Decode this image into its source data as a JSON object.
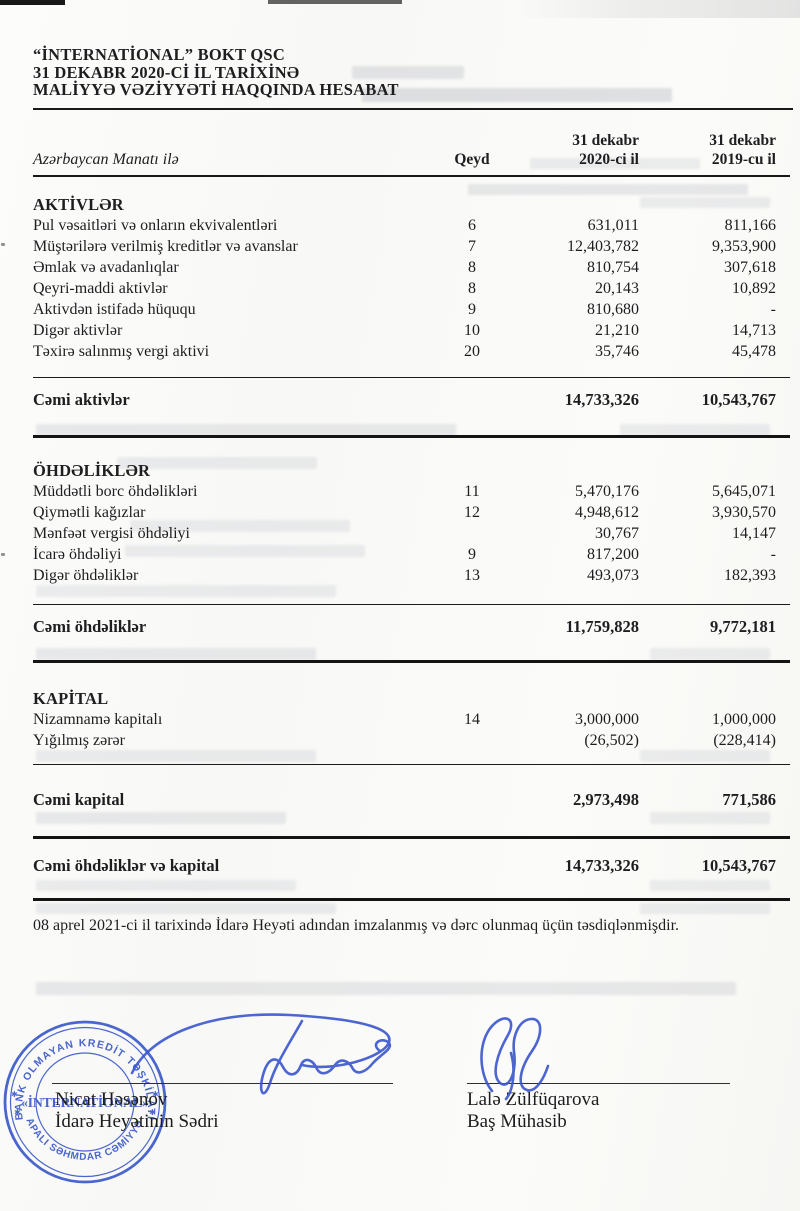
{
  "header": {
    "title_lines": [
      "“İNTERNATİONAL” BOKT QSC",
      "31 DEKABR 2020-Cİ İL TARİXİNƏ",
      "MALİYYƏ VƏZİYYƏTİ HAQQINDA HESABAT"
    ]
  },
  "table": {
    "currency_label": "Azərbaycan Manatı ilə",
    "note_header": "Qeyd",
    "col_2020": {
      "line1": "31 dekabr",
      "line2": "2020-ci il"
    },
    "col_2019": {
      "line1": "31 dekabr",
      "line2": "2019-cu il"
    },
    "sections": [
      {
        "heading": "AKTİVLƏR",
        "rows": [
          {
            "label": "Pul vəsaitləri və onların ekvivalentləri",
            "note": "6",
            "v2020": "631,011",
            "v2019": "811,166"
          },
          {
            "label": "Müştərilərə verilmiş kreditlər və avanslar",
            "note": "7",
            "v2020": "12,403,782",
            "v2019": "9,353,900"
          },
          {
            "label": "Əmlak və avadanlıqlar",
            "note": "8",
            "v2020": "810,754",
            "v2019": "307,618"
          },
          {
            "label": "Qeyri-maddi aktivlər",
            "note": "8",
            "v2020": "20,143",
            "v2019": "10,892"
          },
          {
            "label": "Aktivdən istifadə hüququ",
            "note": "9",
            "v2020": "810,680",
            "v2019": "-"
          },
          {
            "label": "Digər aktivlər",
            "note": "10",
            "v2020": "21,210",
            "v2019": "14,713"
          },
          {
            "label": "Təxirə salınmış vergi aktivi",
            "note": "20",
            "v2020": "35,746",
            "v2019": "45,478"
          }
        ],
        "total": {
          "label": "Cəmi aktivlər",
          "v2020": "14,733,326",
          "v2019": "10,543,767"
        }
      },
      {
        "heading": "ÖHDƏLİKLƏR",
        "rows": [
          {
            "label": "Müddətli borc öhdəlikləri",
            "note": "11",
            "v2020": "5,470,176",
            "v2019": "5,645,071"
          },
          {
            "label": "Qiymətli kağızlar",
            "note": "12",
            "v2020": "4,948,612",
            "v2019": "3,930,570"
          },
          {
            "label": "Mənfəət vergisi öhdəliyi",
            "note": "",
            "v2020": "30,767",
            "v2019": "14,147"
          },
          {
            "label": "İcarə öhdəliyi",
            "note": "9",
            "v2020": "817,200",
            "v2019": "-"
          },
          {
            "label": "Digər öhdəliklər",
            "note": "13",
            "v2020": "493,073",
            "v2019": "182,393"
          }
        ],
        "total": {
          "label": "Cəmi öhdəliklər",
          "v2020": "11,759,828",
          "v2019": "9,772,181"
        }
      },
      {
        "heading": "KAPİTAL",
        "rows": [
          {
            "label": "Nizamnamə kapitalı",
            "note": "14",
            "v2020": "3,000,000",
            "v2019": "1,000,000"
          },
          {
            "label": "Yığılmış zərər",
            "note": "",
            "v2020": "(26,502)",
            "v2019": "(228,414)"
          }
        ],
        "total": {
          "label": "Cəmi kapital",
          "v2020": "2,973,498",
          "v2019": "771,586"
        }
      }
    ],
    "grand_total": {
      "label": "Cəmi öhdəliklər və kapital",
      "v2020": "14,733,326",
      "v2019": "10,543,767"
    }
  },
  "approval_note": "08 aprel 2021-ci il tarixində İdarə Heyəti adından imzalanmış və dərc olunmaq üçün təsdiqlənmişdir.",
  "signatures": {
    "left": {
      "name": "Nicat Həsənov",
      "title": "İdarə Heyətinin Sədri"
    },
    "right": {
      "name": "Lalə Zülfüqarova",
      "title": "Baş Mühasib"
    }
  },
  "stamp": {
    "top_text": "BANK OLMAYAN KREDİT TƏŞKİLATI",
    "center_text": "«İNTERNATİONAL»",
    "bottom_text": "QAPALI SƏHMDAR CƏMİYYƏTİ"
  },
  "colors": {
    "ink": "#1e1e20",
    "rule": "#141414",
    "stamp_blue": "#3252c8",
    "signature_blue": "#3a55cd"
  }
}
